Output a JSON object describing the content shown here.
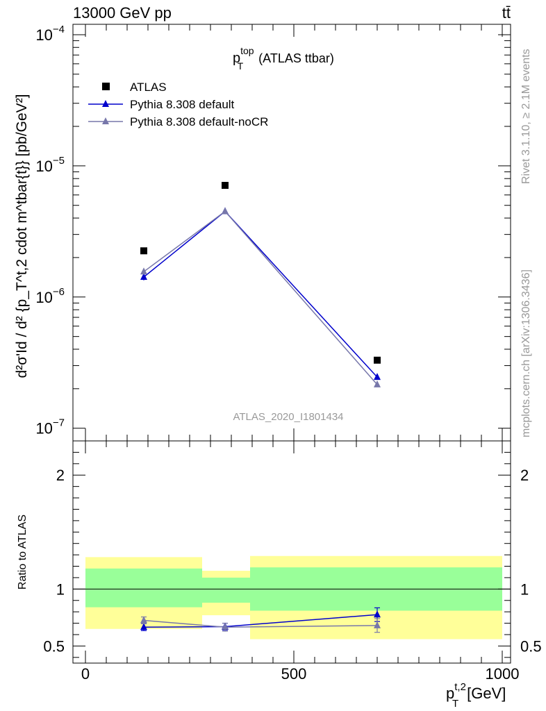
{
  "header": {
    "energy_label": "13000 GeV pp",
    "process_label": "tt̄"
  },
  "side_labels": {
    "rivet": "Rivet 3.1.10, ≥ 2.1M events",
    "mcplots": "mcplots.cern.ch [arXiv:1306.3436]"
  },
  "colors": {
    "data": "#000000",
    "pythia_default": "#0000cc",
    "pythia_nocr": "#7777aa",
    "band_inner": "#99ff99",
    "band_outer": "#ffff99"
  },
  "chart_data": [
    {
      "type": "scatter",
      "title": "p_T^top (ATLAS ttbar)",
      "title_main": "p",
      "title_sup": "top",
      "title_sub": "T",
      "title_rest": "(ATLAS ttbar)",
      "watermark": "ATLAS_2020_I1801434",
      "ylabel": "d²σ'Id / d² {p_T^t,2 cdot m^tbar{t}} [pb/GeV²]",
      "yscale": "log",
      "ylim": [
        8e-08,
        0.00012
      ],
      "xlim": [
        -30,
        1020
      ],
      "ytick_labels": [
        {
          "base": "10",
          "exp": "−4",
          "value": 0.0001
        },
        {
          "base": "10",
          "exp": "−5",
          "value": 1e-05
        },
        {
          "base": "10",
          "exp": "−6",
          "value": 1e-06
        },
        {
          "base": "10",
          "exp": "−7",
          "value": 1e-07
        }
      ],
      "legend_position": "top-left",
      "series": [
        {
          "name": "ATLAS",
          "marker": "square",
          "color": "#000000",
          "x": [
            140,
            335,
            700
          ],
          "y": [
            2.25e-06,
            7.1e-06,
            3.3e-07
          ],
          "yerr": [
            0,
            0,
            0
          ]
        },
        {
          "name": "Pythia 8.308 default",
          "marker": "triangle",
          "color": "#0000cc",
          "x": [
            140,
            335,
            700
          ],
          "y": [
            1.42e-06,
            4.5e-06,
            2.45e-07
          ],
          "yerr": [
            8e-08,
            1e-07,
            3e-09
          ]
        },
        {
          "name": "Pythia 8.308 default-noCR",
          "marker": "triangle",
          "color": "#7777aa",
          "x": [
            140,
            335,
            700
          ],
          "y": [
            1.56e-06,
            4.5e-06,
            2.15e-07
          ],
          "yerr": [
            8e-08,
            1e-07,
            3e-09
          ]
        }
      ]
    },
    {
      "type": "scatter",
      "ylabel": "Ratio to ATLAS",
      "xlabel": "p_T^t,2 [GeV]",
      "xlabel_main": "p",
      "xlabel_sup": "t,2",
      "xlabel_sub": "T",
      "xlabel_rest": "[GeV]",
      "ylim": [
        0.35,
        2.3
      ],
      "xlim": [
        -30,
        1020
      ],
      "yticks": [
        0.5,
        1,
        2
      ],
      "ytick_labels": [
        "0.5",
        "1",
        "2"
      ],
      "xticks": [
        0,
        500,
        1000
      ],
      "xtick_labels": [
        "0",
        "500",
        "1000"
      ],
      "reference_line": 1,
      "bands": [
        {
          "x": [
            0,
            280
          ],
          "inner": [
            0.84,
            1.18
          ],
          "outer": [
            0.65,
            1.28
          ]
        },
        {
          "x": [
            280,
            395
          ],
          "inner": [
            0.88,
            1.1
          ],
          "outer": [
            0.77,
            1.16
          ]
        },
        {
          "x": [
            395,
            1000
          ],
          "inner": [
            0.81,
            1.19
          ],
          "outer": [
            0.56,
            1.29
          ]
        }
      ],
      "series": [
        {
          "name": "Pythia 8.308 default",
          "color": "#0000cc",
          "x": [
            140,
            335,
            700
          ],
          "y": [
            0.665,
            0.67,
            0.775
          ],
          "yerr": [
            0.03,
            0.03,
            0.06
          ]
        },
        {
          "name": "Pythia 8.308 default-noCR",
          "color": "#7777aa",
          "x": [
            140,
            335,
            700
          ],
          "y": [
            0.725,
            0.665,
            0.68
          ],
          "yerr": [
            0.03,
            0.035,
            0.06
          ]
        }
      ]
    }
  ]
}
